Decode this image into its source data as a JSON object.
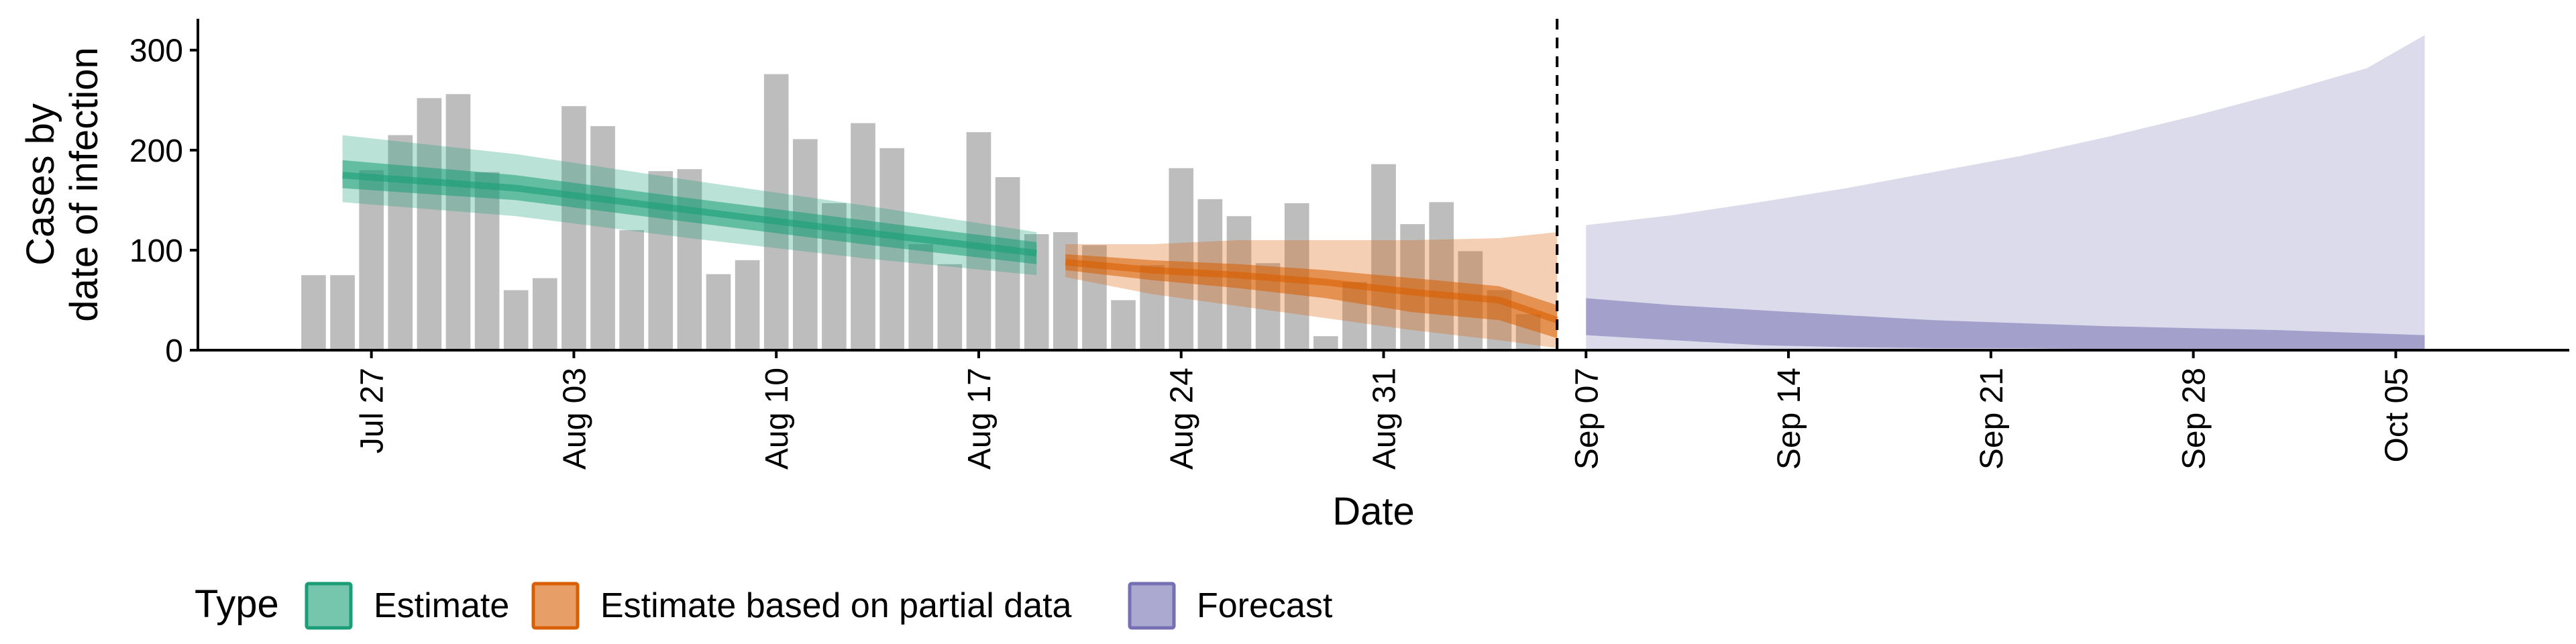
{
  "chart_data": {
    "type": "bar",
    "xlabel": "Date",
    "ylabel_lines": [
      "Cases by",
      "date of infection"
    ],
    "ylim": [
      0,
      330
    ],
    "yticks": [
      0,
      100,
      200,
      300
    ],
    "x_range": [
      "2020-07-21",
      "2020-10-11"
    ],
    "x_tick_dates": [
      "2020-07-27",
      "2020-08-03",
      "2020-08-10",
      "2020-08-17",
      "2020-08-24",
      "2020-08-31",
      "2020-09-07",
      "2020-09-14",
      "2020-09-21",
      "2020-09-28",
      "2020-10-05"
    ],
    "x_tick_labels": [
      "Jul 27",
      "Aug 03",
      "Aug 10",
      "Aug 17",
      "Aug 24",
      "Aug 31",
      "Sep 07",
      "Sep 14",
      "Sep 21",
      "Sep 28",
      "Oct 05"
    ],
    "vline_date": "2020-09-06",
    "grid": false,
    "legend_position": "bottom-left",
    "legend_title": "Type",
    "legend_items": [
      {
        "label": "Estimate",
        "color": "#1b9e77"
      },
      {
        "label": "Estimate based on partial data",
        "color": "#d95f02"
      },
      {
        "label": "Forecast",
        "color": "#7570b3"
      }
    ],
    "bar_color": "#bdbdbd",
    "bar_dates": [
      "2020-07-25",
      "2020-07-26",
      "2020-07-27",
      "2020-07-28",
      "2020-07-29",
      "2020-07-30",
      "2020-07-31",
      "2020-08-01",
      "2020-08-02",
      "2020-08-03",
      "2020-08-04",
      "2020-08-05",
      "2020-08-06",
      "2020-08-07",
      "2020-08-08",
      "2020-08-09",
      "2020-08-10",
      "2020-08-11",
      "2020-08-12",
      "2020-08-13",
      "2020-08-14",
      "2020-08-15",
      "2020-08-16",
      "2020-08-17",
      "2020-08-18",
      "2020-08-19",
      "2020-08-20",
      "2020-08-21",
      "2020-08-22",
      "2020-08-23",
      "2020-08-24",
      "2020-08-25",
      "2020-08-26",
      "2020-08-27",
      "2020-08-28",
      "2020-08-29",
      "2020-08-30",
      "2020-08-31",
      "2020-09-01",
      "2020-09-02",
      "2020-09-03",
      "2020-09-04",
      "2020-09-05",
      "2020-09-06"
    ],
    "bar_values": [
      75,
      75,
      180,
      215,
      252,
      256,
      178,
      60,
      72,
      244,
      224,
      120,
      179,
      181,
      76,
      90,
      276,
      211,
      147,
      227,
      202,
      106,
      86,
      218,
      173,
      116,
      118,
      105,
      50,
      85,
      182,
      151,
      134,
      87,
      147,
      14,
      68,
      186,
      126,
      148,
      99,
      60,
      36,
      0
    ],
    "series": [
      {
        "name": "Estimate",
        "color": "#1b9e77",
        "dates": [
          "2020-07-26",
          "2020-08-01",
          "2020-08-07",
          "2020-08-13",
          "2020-08-19"
        ],
        "median": [
          175,
          162,
          140,
          118,
          97
        ],
        "inner_low": [
          162,
          150,
          128,
          106,
          86
        ],
        "inner_high": [
          190,
          175,
          152,
          130,
          108
        ],
        "outer_low": [
          148,
          134,
          112,
          92,
          75
        ],
        "outer_high": [
          215,
          196,
          170,
          145,
          118
        ]
      },
      {
        "name": "Estimate based on partial data",
        "color": "#d95f02",
        "dates": [
          "2020-08-20",
          "2020-08-23",
          "2020-08-26",
          "2020-08-29",
          "2020-09-01",
          "2020-09-04",
          "2020-09-06"
        ],
        "median": [
          88,
          80,
          75,
          68,
          58,
          50,
          30
        ],
        "inner_low": [
          80,
          70,
          62,
          52,
          38,
          30,
          12
        ],
        "inner_high": [
          96,
          90,
          86,
          80,
          72,
          64,
          45
        ],
        "outer_low": [
          73,
          56,
          44,
          32,
          20,
          10,
          2
        ],
        "outer_high": [
          106,
          106,
          110,
          110,
          110,
          112,
          118
        ]
      },
      {
        "name": "Forecast",
        "color": "#7570b3",
        "dates": [
          "2020-09-07",
          "2020-09-10",
          "2020-09-13",
          "2020-09-16",
          "2020-09-19",
          "2020-09-22",
          "2020-09-25",
          "2020-09-28",
          "2020-10-01",
          "2020-10-04",
          "2020-10-06"
        ],
        "inner_low": [
          15,
          10,
          5,
          3,
          2,
          2,
          1,
          1,
          1,
          1,
          1
        ],
        "inner_high": [
          52,
          45,
          40,
          35,
          30,
          27,
          24,
          22,
          20,
          17,
          15
        ],
        "outer_low": [
          0,
          0,
          0,
          0,
          0,
          0,
          0,
          0,
          0,
          0,
          0
        ],
        "outer_high": [
          125,
          135,
          148,
          162,
          178,
          194,
          213,
          234,
          257,
          282,
          315
        ]
      }
    ]
  }
}
